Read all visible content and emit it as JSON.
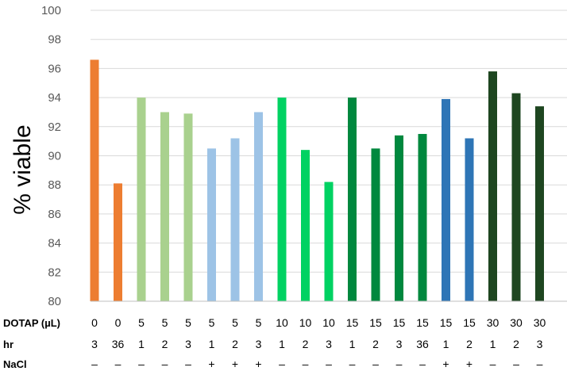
{
  "chart_data": {
    "type": "bar",
    "ylabel": "% viable",
    "ylim": [
      80,
      100
    ],
    "yticks": [
      80,
      82,
      84,
      86,
      88,
      90,
      92,
      94,
      96,
      98,
      100
    ],
    "grid": true,
    "values": [
      96.6,
      88.1,
      94.0,
      93.0,
      92.9,
      90.5,
      91.2,
      93.0,
      94.0,
      90.4,
      88.2,
      94.0,
      90.5,
      91.4,
      91.5,
      93.9,
      91.2,
      95.8,
      94.3,
      93.4
    ],
    "colors": [
      "#ed7d31",
      "#ed7d31",
      "#a9d18e",
      "#a9d18e",
      "#a9d18e",
      "#9dc3e6",
      "#9dc3e6",
      "#9dc3e6",
      "#00d262",
      "#00d262",
      "#00d262",
      "#00883e",
      "#00883e",
      "#00883e",
      "#00883e",
      "#2e75b6",
      "#2e75b6",
      "#1e4620",
      "#1e4620",
      "#1e4620"
    ],
    "condition_rows": [
      {
        "label": "DOTAP  (µL)",
        "values": [
          "0",
          "0",
          "5",
          "5",
          "5",
          "5",
          "5",
          "5",
          "10",
          "10",
          "10",
          "15",
          "15",
          "15",
          "15",
          "15",
          "15",
          "30",
          "30",
          "30"
        ]
      },
      {
        "label": "hr",
        "values": [
          "3",
          "36",
          "1",
          "2",
          "3",
          "1",
          "2",
          "3",
          "1",
          "2",
          "3",
          "1",
          "2",
          "3",
          "36",
          "1",
          "2",
          "1",
          "2",
          "3"
        ]
      },
      {
        "label": "NaCl",
        "values": [
          "–",
          "–",
          "–",
          "–",
          "–",
          "+",
          "+",
          "+",
          "–",
          "–",
          "–",
          "–",
          "–",
          "–",
          "–",
          "+",
          "+",
          "–",
          "–",
          "–"
        ]
      }
    ]
  }
}
